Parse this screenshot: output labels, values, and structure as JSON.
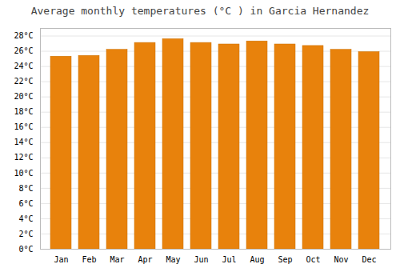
{
  "chart_data": {
    "type": "bar",
    "title": "Average monthly temperatures (°C ) in Garcia Hernandez",
    "categories": [
      "Jan",
      "Feb",
      "Mar",
      "Apr",
      "May",
      "Jun",
      "Jul",
      "Aug",
      "Sep",
      "Oct",
      "Nov",
      "Dec"
    ],
    "values": [
      25.3,
      25.4,
      26.2,
      27.1,
      27.6,
      27.1,
      26.9,
      27.3,
      26.9,
      26.7,
      26.2,
      25.9
    ],
    "color": "#E8820C",
    "ylim": [
      0,
      29
    ],
    "yticks": [
      {
        "value": 0,
        "label": "0°C"
      },
      {
        "value": 2,
        "label": "2°C"
      },
      {
        "value": 4,
        "label": "4°C"
      },
      {
        "value": 6,
        "label": "6°C"
      },
      {
        "value": 8,
        "label": "8°C"
      },
      {
        "value": 10,
        "label": "10°C"
      },
      {
        "value": 12,
        "label": "12°C"
      },
      {
        "value": 14,
        "label": "14°C"
      },
      {
        "value": 16,
        "label": "16°C"
      },
      {
        "value": 18,
        "label": "18°C"
      },
      {
        "value": 20,
        "label": "20°C"
      },
      {
        "value": 22,
        "label": "22°C"
      },
      {
        "value": 24,
        "label": "24°C"
      },
      {
        "value": 26,
        "label": "26°C"
      },
      {
        "value": 28,
        "label": "28°C"
      }
    ],
    "grid": true
  }
}
